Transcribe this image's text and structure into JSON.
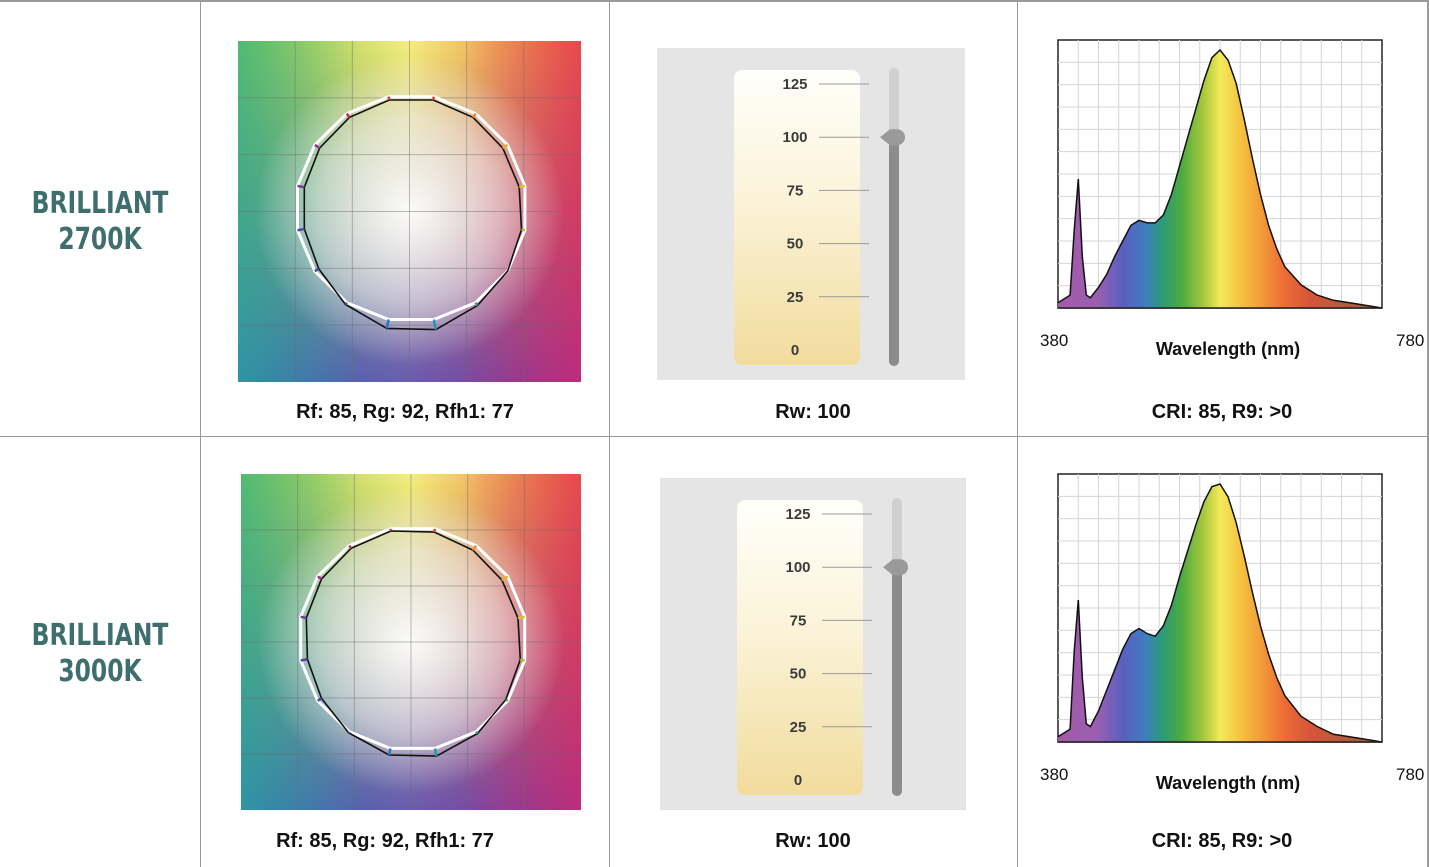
{
  "rows": [
    {
      "label_line1": "BRILLIANT",
      "label_line2": "2700K",
      "fidelity_caption": "Rf: 85, Rg: 92, Rfh1: 77",
      "rw_caption": "Rw: 100",
      "cri_caption": "CRI: 85, R9: >0"
    },
    {
      "label_line1": "BRILLIANT",
      "label_line2": "3000K",
      "fidelity_caption": "Rf: 85, Rg: 92, Rfh1: 77",
      "rw_caption": "Rw: 100",
      "cri_caption": "CRI: 85, R9: >0"
    }
  ],
  "chart_data": [
    {
      "type": "line",
      "chart": "color-vector-graphic",
      "series": [
        {
          "values": [
            0.97,
            0.96,
            0.95,
            0.95,
            0.97,
            1.0,
            1.03,
            1.09,
            1.08,
            1.02,
            0.96,
            0.94,
            0.94,
            0.95,
            0.96,
            0.97
          ]
        },
        {
          "values": [
            1.0,
            1.0,
            1.0,
            1.0,
            1.0,
            1.0,
            1.0,
            1.0,
            1.0,
            1.0,
            1.0,
            1.0,
            1.0,
            1.0,
            1.0,
            1.0
          ]
        }
      ]
    },
    {
      "type": "bar",
      "chart": "rw-scale",
      "ticks": [
        "125",
        "100",
        "75",
        "50",
        "25",
        "0"
      ],
      "ylim": [
        0,
        125
      ],
      "values": [
        100
      ]
    },
    {
      "type": "area",
      "chart": "spectrum",
      "x_min_label": "380",
      "x_max_label": "780",
      "xlabel": "Wavelength (nm)",
      "xlim": [
        380,
        780
      ],
      "x": [
        380,
        395,
        400,
        405,
        410,
        415,
        420,
        430,
        440,
        450,
        460,
        470,
        480,
        490,
        500,
        510,
        520,
        530,
        540,
        550,
        560,
        570,
        580,
        590,
        600,
        610,
        620,
        630,
        640,
        650,
        660,
        680,
        700,
        720,
        740,
        760,
        780
      ],
      "y": [
        0.02,
        0.05,
        0.3,
        0.5,
        0.2,
        0.05,
        0.04,
        0.08,
        0.13,
        0.2,
        0.26,
        0.32,
        0.34,
        0.33,
        0.33,
        0.36,
        0.44,
        0.55,
        0.66,
        0.77,
        0.88,
        0.97,
        1.0,
        0.96,
        0.87,
        0.73,
        0.58,
        0.44,
        0.32,
        0.23,
        0.16,
        0.09,
        0.05,
        0.03,
        0.02,
        0.01,
        0.0
      ]
    },
    {
      "type": "line",
      "chart": "color-vector-graphic",
      "series": [
        {
          "values": [
            0.97,
            0.95,
            0.94,
            0.94,
            0.96,
            0.98,
            1.02,
            1.07,
            1.06,
            1.01,
            0.96,
            0.94,
            0.95,
            0.96,
            0.97,
            0.98
          ]
        },
        {
          "values": [
            1.0,
            1.0,
            1.0,
            1.0,
            1.0,
            1.0,
            1.0,
            1.0,
            1.0,
            1.0,
            1.0,
            1.0,
            1.0,
            1.0,
            1.0,
            1.0
          ]
        }
      ]
    },
    {
      "type": "bar",
      "chart": "rw-scale",
      "ticks": [
        "125",
        "100",
        "75",
        "50",
        "25",
        "0"
      ],
      "ylim": [
        0,
        125
      ],
      "values": [
        100
      ]
    },
    {
      "type": "area",
      "chart": "spectrum",
      "x_min_label": "380",
      "x_max_label": "780",
      "xlabel": "Wavelength (nm)",
      "xlim": [
        380,
        780
      ],
      "x": [
        380,
        395,
        400,
        405,
        410,
        415,
        420,
        430,
        440,
        450,
        460,
        470,
        480,
        490,
        500,
        510,
        520,
        530,
        540,
        550,
        560,
        570,
        580,
        590,
        600,
        610,
        620,
        630,
        640,
        650,
        660,
        680,
        700,
        720,
        740,
        760,
        780
      ],
      "y": [
        0.02,
        0.05,
        0.35,
        0.55,
        0.25,
        0.07,
        0.06,
        0.12,
        0.2,
        0.28,
        0.36,
        0.42,
        0.44,
        0.42,
        0.41,
        0.45,
        0.53,
        0.64,
        0.74,
        0.84,
        0.93,
        0.99,
        1.0,
        0.95,
        0.85,
        0.72,
        0.58,
        0.45,
        0.34,
        0.25,
        0.18,
        0.1,
        0.06,
        0.03,
        0.02,
        0.01,
        0.0
      ]
    }
  ]
}
